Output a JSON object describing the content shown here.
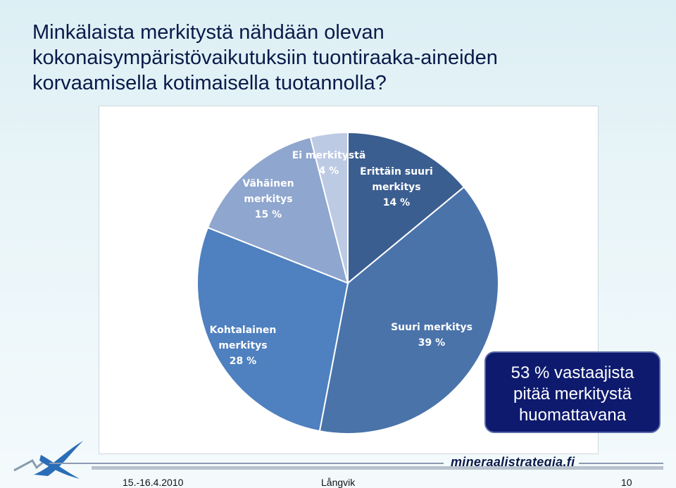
{
  "title_lines": [
    "Minkälaista merkitystä nähdään olevan",
    "kokonaisympäristövaikutuksiin tuontiraaka-aineiden",
    "korvaamisella kotimaisella tuotannolla?"
  ],
  "chart_data": {
    "type": "pie",
    "start": "12 o'clock, clockwise",
    "slices": [
      {
        "label_lines": [
          "Erittäin suuri",
          "merkitys"
        ],
        "pct_text": "14 %",
        "value": 14,
        "color": "#3b5e90",
        "text_color": "#ffffff"
      },
      {
        "label_lines": [
          "Suuri merkitys"
        ],
        "pct_text": "39 %",
        "value": 39,
        "color": "#4a73aa",
        "text_color": "#ffffff"
      },
      {
        "label_lines": [
          "Kohtalainen",
          "merkitys"
        ],
        "pct_text": "28 %",
        "value": 28,
        "color": "#4f80bf",
        "text_color": "#ffffff"
      },
      {
        "label_lines": [
          "Vähäinen",
          "merkitys"
        ],
        "pct_text": "15 %",
        "value": 15,
        "color": "#8fa6ce",
        "text_color": "#ffffff"
      },
      {
        "label_lines": [
          "Ei merkitystä"
        ],
        "pct_text": "4 %",
        "value": 4,
        "color": "#bccae4",
        "text_color": "#ffffff"
      }
    ]
  },
  "callout_lines": [
    "53 % vastaajista",
    "pitää merkitystä",
    "huomattavana"
  ],
  "brand": "mineraalistrategia.fi",
  "footer": {
    "date": "15.-16.4.2010",
    "author": "Långvik",
    "page": "10"
  }
}
